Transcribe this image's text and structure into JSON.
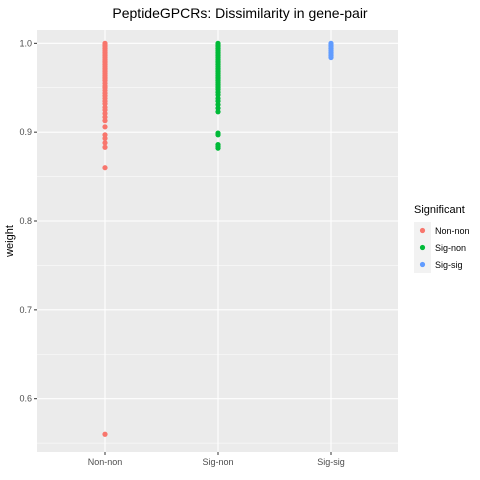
{
  "chart_data": {
    "type": "scatter",
    "title": "PeptideGPCRs: Dissimilarity in gene-pair",
    "xlabel": "",
    "ylabel": "weight",
    "categories": [
      "Non-non",
      "Sig-non",
      "Sig-sig"
    ],
    "ylim": [
      0.54,
      1.015
    ],
    "yticks": [
      0.6,
      0.7,
      0.8,
      0.9,
      1.0
    ],
    "ytick_labels": [
      "0.6",
      "0.7",
      "0.8",
      "0.9",
      "1.0"
    ],
    "grid": true,
    "legend": {
      "title": "Significant",
      "position": "right",
      "entries": [
        "Non-non",
        "Sig-non",
        "Sig-sig"
      ]
    },
    "series": [
      {
        "name": "Non-non",
        "color": "#F8766D",
        "values": [
          1.0,
          0.998,
          0.996,
          0.994,
          0.992,
          0.99,
          0.988,
          0.986,
          0.984,
          0.982,
          0.98,
          0.978,
          0.976,
          0.974,
          0.972,
          0.97,
          0.968,
          0.966,
          0.964,
          0.962,
          0.96,
          0.958,
          0.955,
          0.952,
          0.95,
          0.947,
          0.944,
          0.941,
          0.938,
          0.935,
          0.932,
          0.928,
          0.925,
          0.921,
          0.917,
          0.913,
          0.906,
          0.897,
          0.893,
          0.888,
          0.883,
          0.86,
          0.56
        ]
      },
      {
        "name": "Sig-non",
        "color": "#00BA38",
        "values": [
          1.0,
          0.998,
          0.996,
          0.994,
          0.992,
          0.99,
          0.988,
          0.986,
          0.984,
          0.982,
          0.98,
          0.978,
          0.976,
          0.974,
          0.972,
          0.97,
          0.968,
          0.966,
          0.964,
          0.962,
          0.96,
          0.958,
          0.956,
          0.954,
          0.952,
          0.95,
          0.948,
          0.945,
          0.942,
          0.938,
          0.935,
          0.931,
          0.927,
          0.923,
          0.899,
          0.897,
          0.886,
          0.884,
          0.882
        ]
      },
      {
        "name": "Sig-sig",
        "color": "#619CFF",
        "values": [
          1.0,
          0.998,
          0.996,
          0.994,
          0.992,
          0.99,
          0.988,
          0.986,
          0.984
        ]
      }
    ]
  }
}
